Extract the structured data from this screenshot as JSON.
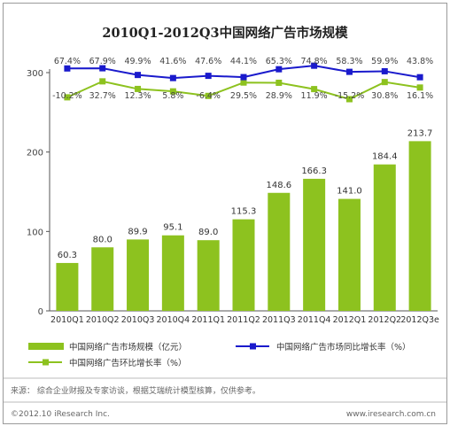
{
  "chart_data": {
    "type": "bar",
    "title": "2010Q1-2012Q3中国网络广告市场规模",
    "categories": [
      "2010Q1",
      "2010Q2",
      "2010Q3",
      "2010Q4",
      "2011Q1",
      "2011Q2",
      "2011Q3",
      "2011Q4",
      "2012Q1",
      "2012Q2",
      "2012Q3e"
    ],
    "ylim": [
      0,
      300
    ],
    "yticks": [
      0,
      100,
      200,
      300
    ],
    "series": [
      {
        "name": "中国网络广告市场规模（亿元）",
        "type": "bar",
        "color": "#8dc21f",
        "values": [
          60.3,
          80.0,
          89.9,
          95.1,
          89.0,
          115.3,
          148.6,
          166.3,
          141.0,
          184.4,
          213.7
        ],
        "labels": [
          "60.3",
          "80.0",
          "89.9",
          "95.1",
          "89.0",
          "115.3",
          "148.6",
          "166.3",
          "141.0",
          "184.4",
          "213.7"
        ]
      },
      {
        "name": "中国网络广告市场同比增长率（%）",
        "type": "line",
        "color": "#1a1acc",
        "values": [
          67.4,
          67.9,
          49.9,
          41.6,
          47.6,
          44.1,
          65.3,
          74.8,
          58.3,
          59.9,
          43.8
        ],
        "labels": [
          "67.4%",
          "67.9%",
          "49.9%",
          "41.6%",
          "47.6%",
          "44.1%",
          "65.3%",
          "74.8%",
          "58.3%",
          "59.9%",
          "43.8%"
        ]
      },
      {
        "name": "中国网络广告环比增长率（%）",
        "type": "line",
        "color": "#8dc21f",
        "values": [
          -10.2,
          32.7,
          12.3,
          5.8,
          -6.4,
          29.5,
          28.9,
          11.9,
          -15.2,
          30.8,
          16.1
        ],
        "labels": [
          "-10.2%",
          "32.7%",
          "12.3%",
          "5.8%",
          "-6.4%",
          "29.5%",
          "28.9%",
          "11.9%",
          "-15.2%",
          "30.8%",
          "16.1%"
        ]
      }
    ]
  },
  "footer": {
    "source": "来源：  综合企业财报及专家访谈，根据艾瑞统计模型核算，仅供参考。",
    "copyright": "©2012.10 iResearch Inc.",
    "website": "www.iresearch.com.cn"
  },
  "colors": {
    "bar": "#8dc21f",
    "yoy": "#1a1acc",
    "qoq": "#8dc21f",
    "border": "#9a9a9a"
  }
}
